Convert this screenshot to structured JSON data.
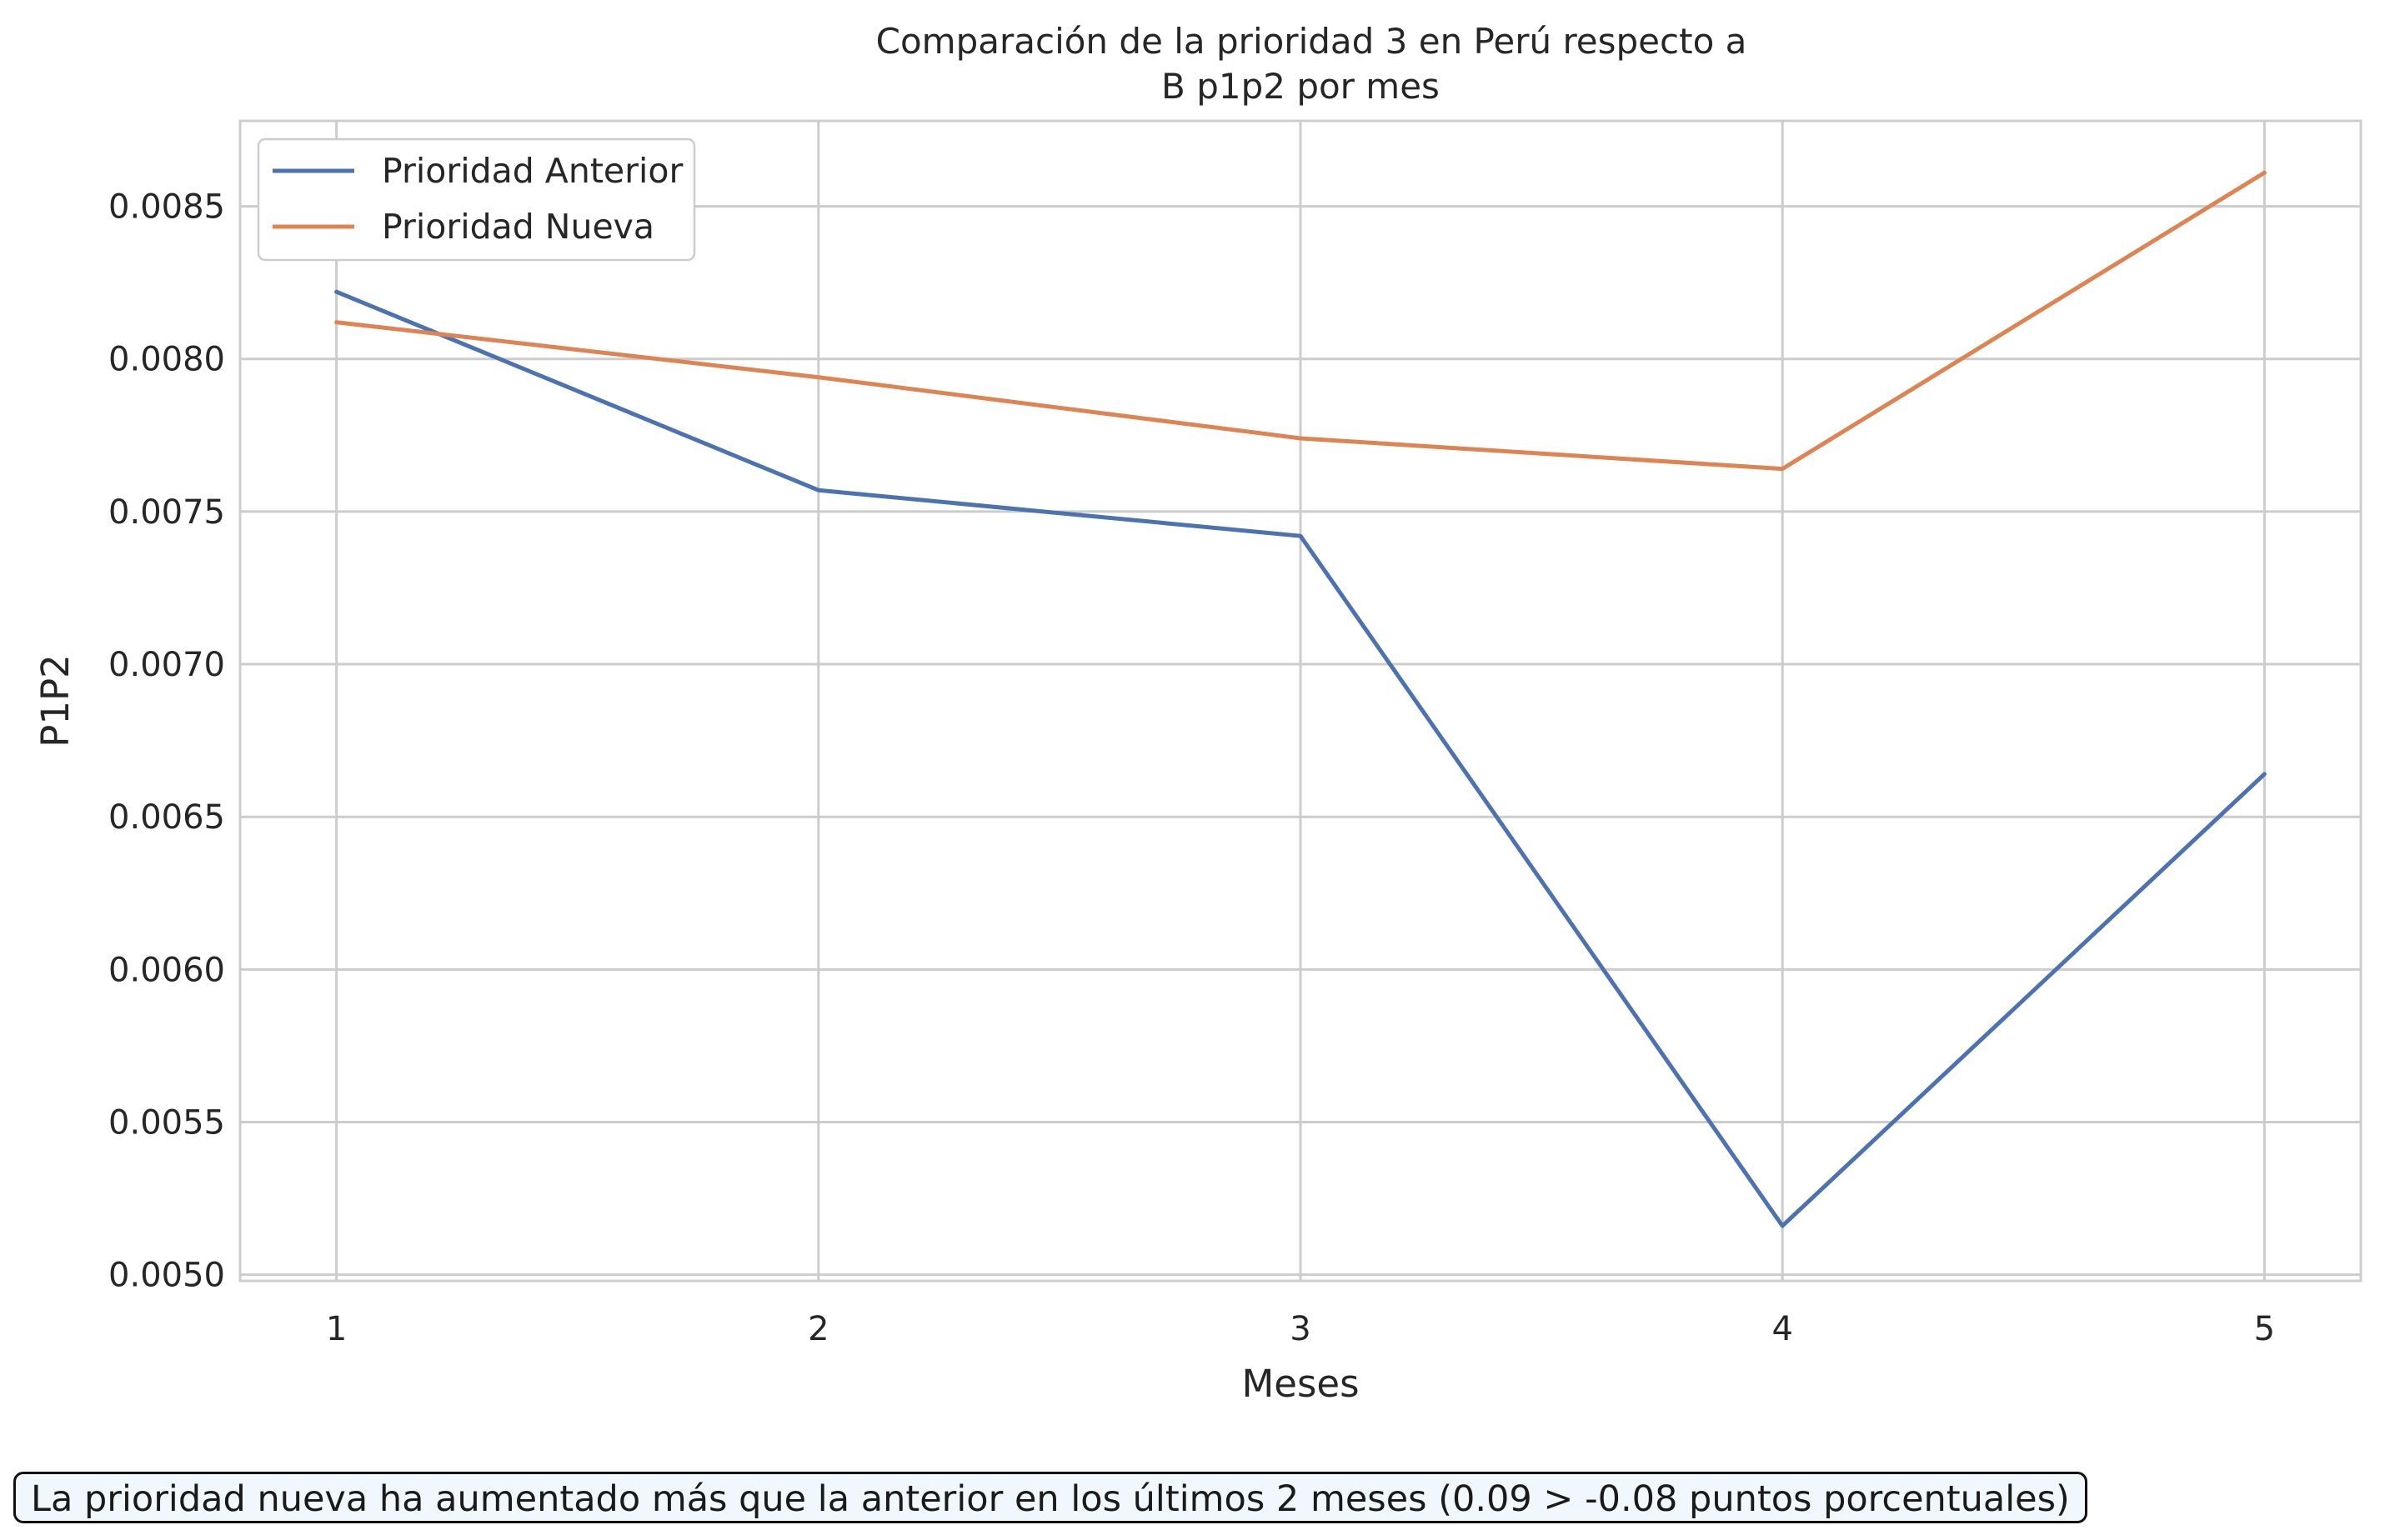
{
  "chart_data": {
    "type": "line",
    "title_lines": [
      "Comparación de la prioridad 3 en Perú respecto a",
      "B p1p2 por mes"
    ],
    "xlabel": "Meses",
    "ylabel": "P1P2",
    "x": [
      1,
      2,
      3,
      4,
      5
    ],
    "xticks": [
      "1",
      "2",
      "3",
      "4",
      "5"
    ],
    "xlim": [
      0.8,
      5.2
    ],
    "ylim": [
      0.00498,
      0.00878
    ],
    "yticks": [
      0.005,
      0.0055,
      0.006,
      0.0065,
      0.007,
      0.0075,
      0.008,
      0.0085
    ],
    "ytick_labels": [
      "0.0050",
      "0.0055",
      "0.0060",
      "0.0065",
      "0.0070",
      "0.0075",
      "0.0080",
      "0.0085"
    ],
    "grid": true,
    "legend_position": "upper-left",
    "series": [
      {
        "name": "Prioridad Anterior",
        "color": "#4c72b0",
        "values": [
          0.00822,
          0.00757,
          0.00742,
          0.00516,
          0.00664
        ]
      },
      {
        "name": "Prioridad Nueva",
        "color": "#dd8452",
        "values": [
          0.00812,
          0.00794,
          0.00774,
          0.00764,
          0.00861
        ]
      }
    ]
  },
  "annotation": {
    "text": "La prioridad nueva ha aumentado más que la anterior en los últimos 2 meses (0.09 > -0.08 puntos porcentuales)"
  }
}
